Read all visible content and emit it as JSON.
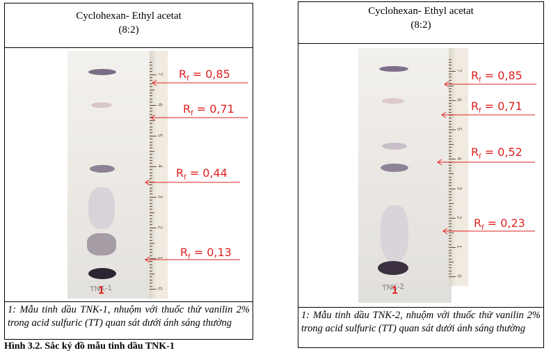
{
  "left_panel": {
    "title": "Cyclohexan- Ethyl acetat",
    "ratio": "(8:2)",
    "rf_values": [
      "0,85",
      "0,71",
      "0,44",
      "0,13"
    ],
    "sample_number": "1",
    "plate_label": "TNK-1",
    "caption": "1: Mẫu tinh dầu TNK-1, nhuộm với thuốc thử vanilin 2% trong acid sulfuric (TT) quan sát dưới ánh sáng thường"
  },
  "right_panel": {
    "title": "Cyclohexan- Ethyl acetat",
    "ratio": "(8:2)",
    "rf_values": [
      "0,85",
      "0,71",
      "0,52",
      "0,23"
    ],
    "sample_number": "1",
    "plate_label": "TNK-2",
    "caption": "1: Mẫu tinh dầu TNK-2, nhuộm với thuốc thử vanilin 2% trong acid sulfuric (TT) quan sát dưới ánh sáng thường"
  },
  "rf_prefix": "R",
  "rf_subscript": "f",
  "ruler_numbers": [
    "0",
    "1",
    "2",
    "3",
    "4",
    "5",
    "6",
    "7"
  ],
  "footer_text": "Hình 3.2. Sắc ký đồ mẫu tinh dầu TNK-1",
  "colors": {
    "annotation": "#e02020",
    "spot": "#5a4a6a"
  }
}
